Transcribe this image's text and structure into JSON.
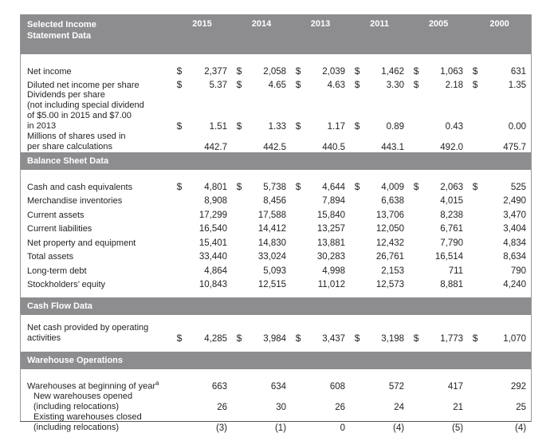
{
  "years": [
    "2015",
    "2014",
    "2013",
    "2011",
    "2005",
    "2000"
  ],
  "header": {
    "title_line1": "Selected Income",
    "title_line2": "Statement Data"
  },
  "income": [
    {
      "label": "Net income",
      "dollar": true,
      "values": [
        "2,377",
        "2,058",
        "2,039",
        "1,462",
        "1,063",
        "631"
      ]
    },
    {
      "label": "Diluted net income per share",
      "dollar": true,
      "values": [
        "5.37",
        "4.65",
        "4.63",
        "3.30",
        "2.18",
        "1.35"
      ]
    },
    {
      "label_lines": [
        "Dividends per share",
        "(not including special dividend",
        "of $5.00 in 2015 and $7.00",
        "in 2013"
      ],
      "dollar": true,
      "dollar_cols": [
        0,
        1,
        2,
        3
      ],
      "values": [
        "1.51",
        "1.33",
        "1.17",
        "0.89",
        "0.43",
        "0.00"
      ]
    },
    {
      "label_lines": [
        "Millions of shares used in",
        "per share calculations"
      ],
      "dollar": false,
      "values": [
        "442.7",
        "442.5",
        "440.5",
        "443.1",
        "492.0",
        "475.7"
      ]
    }
  ],
  "balance_title": "Balance Sheet Data",
  "balance": [
    {
      "label": "Cash and cash equivalents",
      "dollar": true,
      "values": [
        "4,801",
        "5,738",
        "4,644",
        "4,009",
        "2,063",
        "525"
      ]
    },
    {
      "label": "Merchandise inventories",
      "dollar": false,
      "values": [
        "8,908",
        "8,456",
        "7,894",
        "6,638",
        "4,015",
        "2,490"
      ]
    },
    {
      "label": "Current assets",
      "dollar": false,
      "values": [
        "17,299",
        "17,588",
        "15,840",
        "13,706",
        "8,238",
        "3,470"
      ]
    },
    {
      "label": "Current liabilities",
      "dollar": false,
      "values": [
        "16,540",
        "14,412",
        "13,257",
        "12,050",
        "6,761",
        "3,404"
      ]
    },
    {
      "label": "Net property and equipment",
      "dollar": false,
      "values": [
        "15,401",
        "14,830",
        "13,881",
        "12,432",
        "7,790",
        "4,834"
      ]
    },
    {
      "label": "Total assets",
      "dollar": false,
      "values": [
        "33,440",
        "33,024",
        "30,283",
        "26,761",
        "16,514",
        "8,634"
      ]
    },
    {
      "label": "Long-term debt",
      "dollar": false,
      "values": [
        "4,864",
        "5,093",
        "4,998",
        "2,153",
        "711",
        "790"
      ]
    },
    {
      "label": "Stockholders’ equity",
      "dollar": false,
      "values": [
        "10,843",
        "12,515",
        "11,012",
        "12,573",
        "8,881",
        "4,240"
      ]
    }
  ],
  "cashflow_title": "Cash Flow Data",
  "cashflow": [
    {
      "label_lines": [
        "Net cash provided by operating",
        "activities"
      ],
      "dollar": true,
      "values": [
        "4,285",
        "3,984",
        "3,437",
        "3,198",
        "1,773",
        "1,070"
      ]
    }
  ],
  "warehouse_title": "Warehouse Operations",
  "warehouse": [
    {
      "label": "Warehouses at beginning of year",
      "sup": "a",
      "dollar": false,
      "values": [
        "663",
        "634",
        "608",
        "572",
        "417",
        "292"
      ]
    },
    {
      "label_lines": [
        "New warehouses opened",
        "(including relocations)"
      ],
      "indent": true,
      "dollar": false,
      "values": [
        "26",
        "30",
        "26",
        "24",
        "21",
        "25"
      ]
    },
    {
      "label_lines": [
        "Existing warehouses closed",
        "(including relocations)"
      ],
      "indent": true,
      "dollar": false,
      "values": [
        "(3)",
        "(1)",
        "0",
        "(4)",
        "(5)",
        "(4)"
      ]
    }
  ],
  "dollar_sign": "$"
}
